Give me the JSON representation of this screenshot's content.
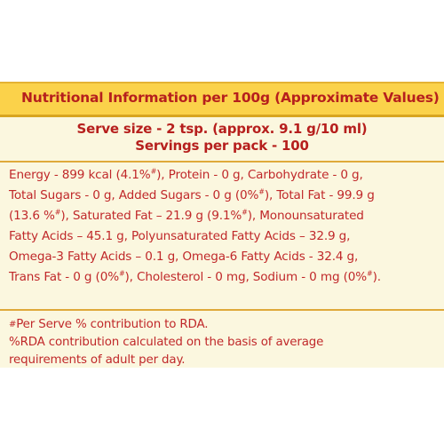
{
  "header": {
    "title": "Nutritional Information per 100g (Approximate Values)"
  },
  "serving": {
    "size": "Serve size - 2 tsp. (approx. 9.1 g/10 ml)",
    "per_pack": "Servings per pack - 100"
  },
  "nutrients": {
    "line1_a": "Energy - 899 kcal (4.1%",
    "line1_mark": "#",
    "line1_b": "), Protein - 0 g, Carbohydrate - 0 g,",
    "line2_a": "Total Sugars - 0 g, Added Sugars - 0 g (0%",
    "line2_mark": "#",
    "line2_b": "), Total Fat - 99.9 g",
    "line3_a": "(13.6 %",
    "line3_mark": "#",
    "line3_b": "), Saturated Fat – 21.9 g (9.1%",
    "line3_mark2": "#",
    "line3_c": "), Monounsaturated",
    "line4": "Fatty Acids – 45.1 g, Polyunsaturated Fatty Acids – 32.9 g,",
    "line5": "Omega-3 Fatty Acids – 0.1 g, Omega-6 Fatty Acids - 32.4 g,",
    "line6_a": "Trans Fat - 0 g (0%",
    "line6_mark": "#",
    "line6_b": "), Cholesterol - 0 mg, Sodium - 0 mg (0%",
    "line6_mark2": "#",
    "line6_c": ")."
  },
  "notes": {
    "per_serve_mark": "#",
    "per_serve_text": "Per Serve % contribution to RDA.",
    "rda_line1": "%RDA contribution calculated on the basis of average",
    "rda_line2": "requirements of adult per day."
  }
}
